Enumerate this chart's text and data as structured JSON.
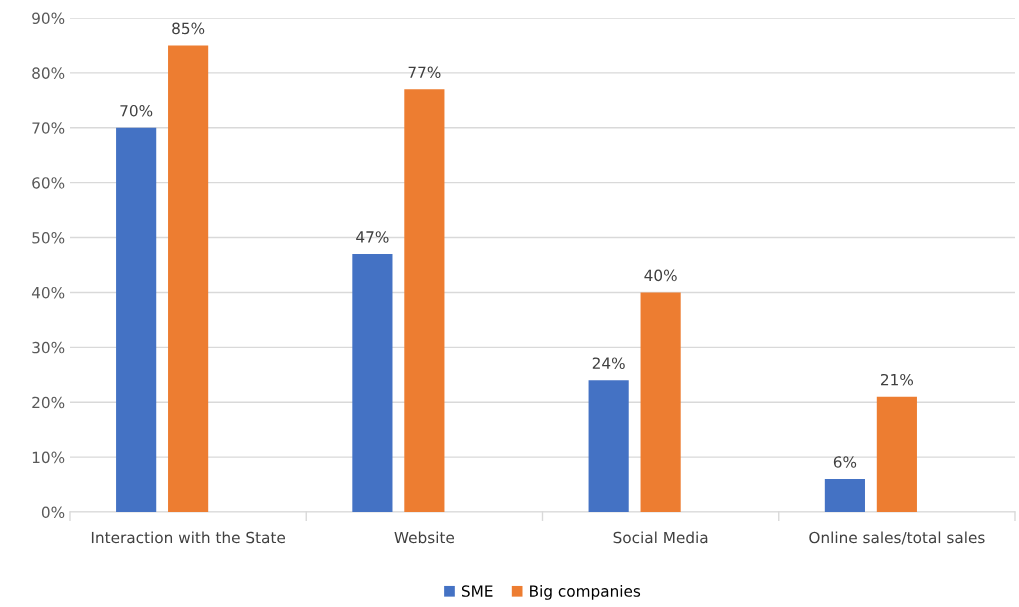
{
  "chart_data": {
    "type": "bar",
    "categories": [
      "Interaction with the State",
      "Website",
      "Social Media",
      "Online sales/total sales"
    ],
    "series": [
      {
        "name": "SME",
        "color": "#4472c4",
        "values": [
          70,
          47,
          24,
          6
        ],
        "value_labels": [
          "70%",
          "47%",
          "24%",
          "6%"
        ]
      },
      {
        "name": "Big companies",
        "color": "#ed7d31",
        "values": [
          85,
          77,
          40,
          21
        ],
        "value_labels": [
          "85%",
          "77%",
          "40%",
          "21%"
        ]
      }
    ],
    "ylim": [
      0,
      90
    ],
    "yticks": [
      {
        "value": 0,
        "label": "0%"
      },
      {
        "value": 10,
        "label": "10%"
      },
      {
        "value": 20,
        "label": "20%"
      },
      {
        "value": 30,
        "label": "30%"
      },
      {
        "value": 40,
        "label": "40%"
      },
      {
        "value": 50,
        "label": "50%"
      },
      {
        "value": 60,
        "label": "60%"
      },
      {
        "value": 70,
        "label": "70%"
      },
      {
        "value": 80,
        "label": "80%"
      },
      {
        "value": 90,
        "label": "90%"
      }
    ],
    "grid": "y",
    "legend": "bottom"
  }
}
